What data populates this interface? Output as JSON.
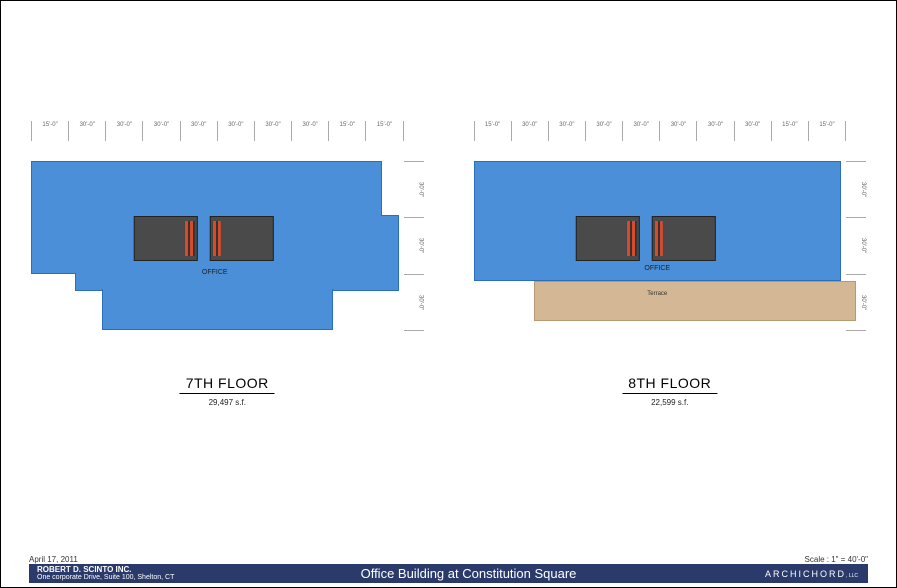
{
  "colors": {
    "office": "#4a8fd8",
    "office_border": "#2a6fb8",
    "terrace": "#d4b896",
    "core": "#4a4a4a",
    "accent": "#d84a2a",
    "titlebar": "#2a3a6a",
    "page_bg": "#ffffff"
  },
  "sheet": {
    "date": "April 17, 2011",
    "scale": "Scale : 1\" = 40'-0\"",
    "client_name": "ROBERT D. SCINTO INC.",
    "client_addr": "One corporate Drive, Suite 100, Shelton, CT",
    "project": "Office Building at Constitution Square",
    "architect": "ARCHICHORD",
    "architect_suffix": ", LLC"
  },
  "plans": [
    {
      "id": "floor7",
      "title": "7TH FLOOR",
      "area": "29,497 s.f.",
      "room_label": "OFFICE",
      "terrace": false,
      "dims_top": [
        "15'-0\"",
        "30'-0\"",
        "30'-0\"",
        "30'-0\"",
        "30'-0\"",
        "30'-0\"",
        "30'-0\"",
        "30'-0\"",
        "15'-0\"",
        "15'-0\""
      ],
      "dims_right": [
        "30'-0\"",
        "30'-0\"",
        "30'-0\""
      ]
    },
    {
      "id": "floor8",
      "title": "8TH FLOOR",
      "area": "22,599 s.f.",
      "room_label": "OFFICE",
      "terrace": true,
      "terrace_label": "Terrace",
      "dims_top": [
        "15'-0\"",
        "30'-0\"",
        "30'-0\"",
        "30'-0\"",
        "30'-0\"",
        "30'-0\"",
        "30'-0\"",
        "30'-0\"",
        "15'-0\"",
        "15'-0\""
      ],
      "dims_right": [
        "30'-0\"",
        "30'-0\"",
        "30'-0\""
      ]
    }
  ]
}
